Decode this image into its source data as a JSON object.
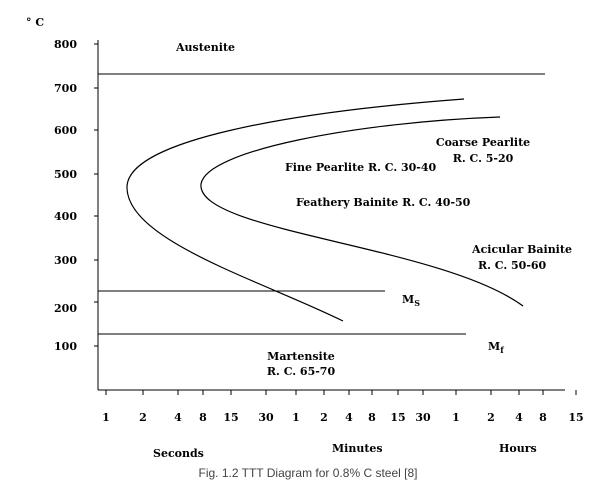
{
  "diagram": {
    "y_unit": "° C",
    "y_ticks": [
      "800",
      "700",
      "600",
      "500",
      "400",
      "300",
      "200",
      "100"
    ],
    "x_ticks": [
      "1",
      "2",
      "4",
      "8",
      "15",
      "30",
      "1",
      "2",
      "4",
      "8",
      "15",
      "30",
      "1",
      "2",
      "4",
      "8",
      "15"
    ],
    "x_groups": {
      "seconds": "Seconds",
      "minutes": "Minutes",
      "hours": "Hours"
    },
    "zones": {
      "austenite": "Austenite",
      "coarse_pearlite_1": "Coarse Pearlite",
      "coarse_pearlite_2": "R. C. 5-20",
      "fine_pearlite": "Fine Pearlite R. C. 30-40",
      "feathery_bainite": "Feathery Bainite R. C. 40-50",
      "acicular_bainite_1": "Acicular Bainite",
      "acicular_bainite_2": "R. C. 50-60",
      "martensite_1": "Martensite",
      "martensite_2": "R. C. 65-70"
    },
    "ms": {
      "main": "M",
      "sub": "S"
    },
    "mf": {
      "main": "M",
      "sub": "f"
    }
  },
  "caption": "Fig. 1.2 TTT Diagram for 0.8% C steel [8]"
}
